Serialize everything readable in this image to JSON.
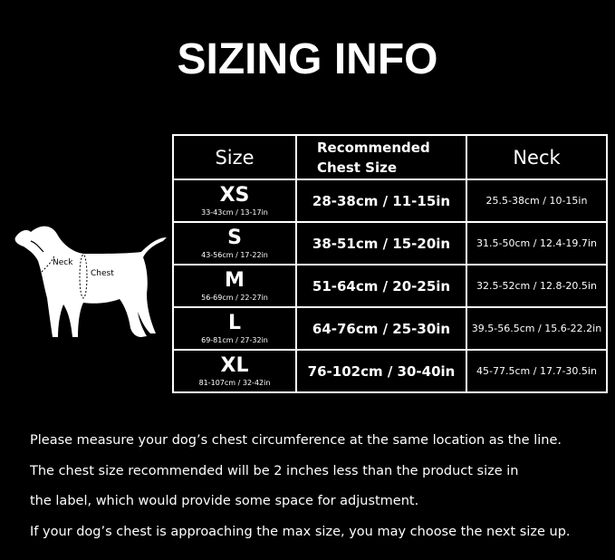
{
  "title": "SIZING INFO",
  "table": {
    "headers": {
      "size": "Size",
      "chest": "Recommended Chest Size",
      "neck": "Neck"
    },
    "rows": [
      {
        "size": "XS",
        "product": "33-43cm / 13-17in",
        "chest": "28-38cm / 11-15in",
        "neck": "25.5-38cm / 10-15in"
      },
      {
        "size": "S",
        "product": "43-56cm / 17-22in",
        "chest": "38-51cm / 15-20in",
        "neck": "31.5-50cm / 12.4-19.7in"
      },
      {
        "size": "M",
        "product": "56-69cm / 22-27in",
        "chest": "51-64cm / 20-25in",
        "neck": "32.5-52cm / 12.8-20.5in"
      },
      {
        "size": "L",
        "product": "69-81cm / 27-32in",
        "chest": "64-76cm / 25-30in",
        "neck": "39.5-56.5cm / 15.6-22.2in"
      },
      {
        "size": "XL",
        "product": "81-107cm / 32-42in",
        "chest": "76-102cm / 30-40in",
        "neck": "45-77.5cm / 17.7-30.5in"
      }
    ]
  },
  "dog": {
    "neck_label": "Neck",
    "chest_label": "Chest"
  },
  "notes": [
    "Please measure your dog’s chest circumference at the same location as the line.",
    "The chest size recommended will be 2 inches less than the product size in",
    "the label, which would provide some space for adjustment.",
    "If your dog’s chest is approaching the max size, you may choose the next size up."
  ]
}
